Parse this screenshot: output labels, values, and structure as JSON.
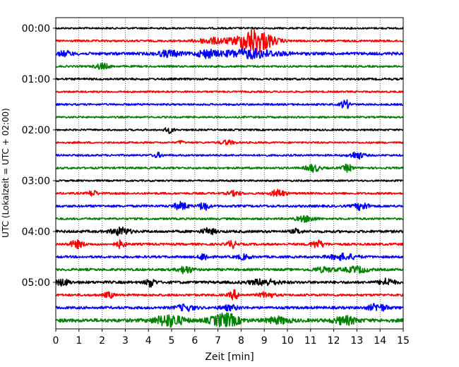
{
  "chart_data": {
    "type": "line",
    "title": "",
    "xlabel": "Zeit  [min]",
    "ylabel": "UTC (Lokalzeit = UTC + 02:00)",
    "xlim": [
      0,
      15
    ],
    "x_ticks": [
      0,
      1,
      2,
      3,
      4,
      5,
      6,
      7,
      8,
      9,
      10,
      11,
      12,
      13,
      14,
      15
    ],
    "y_ticks": [
      {
        "label": "00:00",
        "trace": 0
      },
      {
        "label": "01:00",
        "trace": 4
      },
      {
        "label": "02:00",
        "trace": 8
      },
      {
        "label": "03:00",
        "trace": 12
      },
      {
        "label": "04:00",
        "trace": 16
      },
      {
        "label": "05:00",
        "trace": 20
      }
    ],
    "grid": "vertical-dotted",
    "colors": [
      "#000000",
      "#ff0000",
      "#0000ff",
      "#008000"
    ],
    "traces": [
      {
        "start": "00:00",
        "color": "#000000",
        "noise": 1.2,
        "events": []
      },
      {
        "start": "00:15",
        "color": "#ff0000",
        "noise": 1.4,
        "events": [
          {
            "t": 8.6,
            "amp": 17,
            "width": 0.75
          },
          {
            "t": 6.8,
            "amp": 4,
            "width": 0.7
          }
        ]
      },
      {
        "start": "00:30",
        "color": "#0000ff",
        "noise": 2.0,
        "events": [
          {
            "t": 8.4,
            "amp": 6,
            "width": 1.2
          },
          {
            "t": 6.5,
            "amp": 5,
            "width": 0.4
          },
          {
            "t": 4.9,
            "amp": 4,
            "width": 0.5
          },
          {
            "t": 0.4,
            "amp": 3,
            "width": 0.3
          }
        ]
      },
      {
        "start": "00:45",
        "color": "#008000",
        "noise": 1.3,
        "events": [
          {
            "t": 2.0,
            "amp": 4,
            "width": 0.3
          }
        ]
      },
      {
        "start": "01:00",
        "color": "#000000",
        "noise": 1.4,
        "events": []
      },
      {
        "start": "01:15",
        "color": "#ff0000",
        "noise": 1.2,
        "events": []
      },
      {
        "start": "01:30",
        "color": "#0000ff",
        "noise": 1.3,
        "events": [
          {
            "t": 12.5,
            "amp": 6,
            "width": 0.2
          }
        ]
      },
      {
        "start": "01:45",
        "color": "#008000",
        "noise": 1.2,
        "events": []
      },
      {
        "start": "02:00",
        "color": "#000000",
        "noise": 1.2,
        "events": [
          {
            "t": 4.9,
            "amp": 4,
            "width": 0.2
          }
        ]
      },
      {
        "start": "02:15",
        "color": "#ff0000",
        "noise": 1.2,
        "events": [
          {
            "t": 7.4,
            "amp": 3,
            "width": 0.3
          },
          {
            "t": 5.4,
            "amp": 3,
            "width": 0.1
          }
        ]
      },
      {
        "start": "02:30",
        "color": "#0000ff",
        "noise": 1.3,
        "events": [
          {
            "t": 13.0,
            "amp": 5,
            "width": 0.3
          },
          {
            "t": 4.4,
            "amp": 3,
            "width": 0.2
          }
        ]
      },
      {
        "start": "02:45",
        "color": "#008000",
        "noise": 1.4,
        "events": [
          {
            "t": 11.1,
            "amp": 5,
            "width": 0.3
          },
          {
            "t": 12.6,
            "amp": 5,
            "width": 0.2
          }
        ]
      },
      {
        "start": "03:00",
        "color": "#000000",
        "noise": 1.2,
        "events": []
      },
      {
        "start": "03:15",
        "color": "#ff0000",
        "noise": 1.4,
        "events": [
          {
            "t": 9.6,
            "amp": 5,
            "width": 0.3
          },
          {
            "t": 1.6,
            "amp": 4,
            "width": 0.2
          },
          {
            "t": 7.7,
            "amp": 3,
            "width": 0.3
          }
        ]
      },
      {
        "start": "03:30",
        "color": "#0000ff",
        "noise": 1.6,
        "events": [
          {
            "t": 5.4,
            "amp": 5,
            "width": 0.3
          },
          {
            "t": 6.4,
            "amp": 6,
            "width": 0.2
          },
          {
            "t": 13.2,
            "amp": 5,
            "width": 0.3
          }
        ]
      },
      {
        "start": "03:45",
        "color": "#008000",
        "noise": 1.4,
        "events": [
          {
            "t": 10.8,
            "amp": 4,
            "width": 0.4
          }
        ]
      },
      {
        "start": "04:00",
        "color": "#000000",
        "noise": 1.8,
        "events": [
          {
            "t": 2.8,
            "amp": 5,
            "width": 0.4
          },
          {
            "t": 6.6,
            "amp": 4,
            "width": 0.3
          },
          {
            "t": 10.4,
            "amp": 3,
            "width": 0.2
          }
        ]
      },
      {
        "start": "04:15",
        "color": "#ff0000",
        "noise": 1.6,
        "events": [
          {
            "t": 0.9,
            "amp": 5,
            "width": 0.3
          },
          {
            "t": 2.8,
            "amp": 5,
            "width": 0.2
          },
          {
            "t": 7.6,
            "amp": 5,
            "width": 0.2
          },
          {
            "t": 11.3,
            "amp": 5,
            "width": 0.3
          }
        ]
      },
      {
        "start": "04:30",
        "color": "#0000ff",
        "noise": 1.6,
        "events": [
          {
            "t": 6.4,
            "amp": 5,
            "width": 0.2
          },
          {
            "t": 12.4,
            "amp": 4,
            "width": 0.6
          },
          {
            "t": 8.1,
            "amp": 3,
            "width": 0.3
          }
        ]
      },
      {
        "start": "04:45",
        "color": "#008000",
        "noise": 1.7,
        "events": [
          {
            "t": 5.6,
            "amp": 5,
            "width": 0.3
          },
          {
            "t": 13.0,
            "amp": 4,
            "width": 0.5
          },
          {
            "t": 11.6,
            "amp": 3,
            "width": 0.5
          }
        ]
      },
      {
        "start": "05:00",
        "color": "#000000",
        "noise": 1.9,
        "events": [
          {
            "t": 4.1,
            "amp": 6,
            "width": 0.2
          },
          {
            "t": 14.3,
            "amp": 5,
            "width": 0.3
          },
          {
            "t": 9.0,
            "amp": 4,
            "width": 0.6
          },
          {
            "t": 0.3,
            "amp": 4,
            "width": 0.3
          }
        ]
      },
      {
        "start": "05:15",
        "color": "#ff0000",
        "noise": 1.6,
        "events": [
          {
            "t": 7.7,
            "amp": 6,
            "width": 0.2
          },
          {
            "t": 2.3,
            "amp": 4,
            "width": 0.2
          },
          {
            "t": 9.1,
            "amp": 4,
            "width": 0.3
          }
        ]
      },
      {
        "start": "05:30",
        "color": "#0000ff",
        "noise": 1.8,
        "events": [
          {
            "t": 13.9,
            "amp": 5,
            "width": 0.4
          },
          {
            "t": 5.6,
            "amp": 4,
            "width": 0.4
          },
          {
            "t": 7.5,
            "amp": 3,
            "width": 0.4
          }
        ]
      },
      {
        "start": "05:45",
        "color": "#008000",
        "noise": 2.4,
        "events": [
          {
            "t": 4.9,
            "amp": 8,
            "width": 0.6
          },
          {
            "t": 7.3,
            "amp": 9,
            "width": 0.6
          },
          {
            "t": 12.5,
            "amp": 5,
            "width": 0.5
          },
          {
            "t": 9.6,
            "amp": 4,
            "width": 0.5
          }
        ]
      }
    ]
  }
}
